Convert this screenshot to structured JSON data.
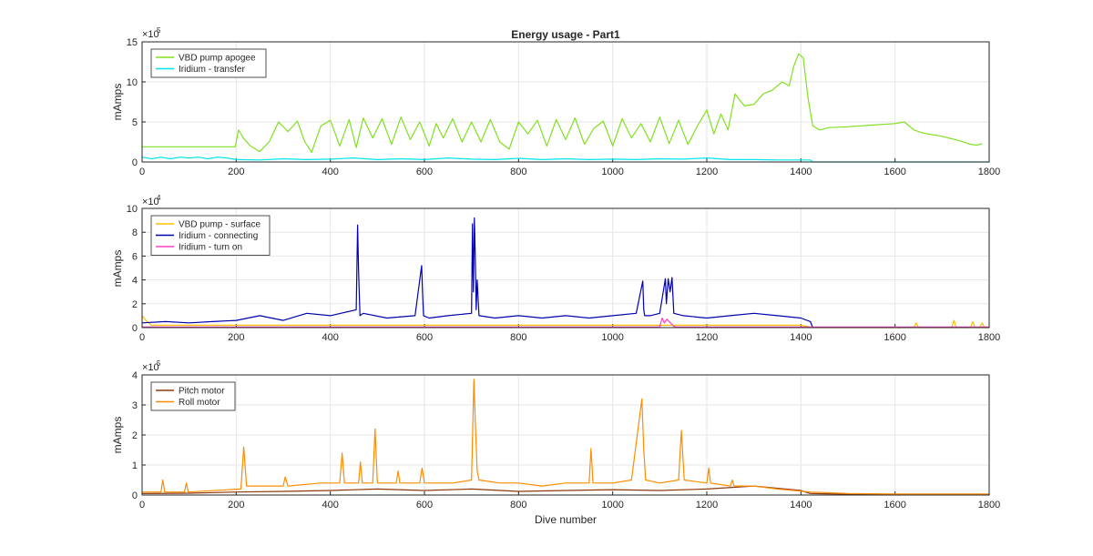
{
  "chart_data": [
    {
      "type": "line",
      "title": "Energy usage - Part1",
      "ylabel": "mAmps",
      "xlabel": "",
      "xlim": [
        0,
        1800
      ],
      "ylim": [
        0,
        15
      ],
      "y_exponent_label": "×10",
      "y_exponent_power": "5",
      "x_ticks": [
        "0",
        "200",
        "400",
        "600",
        "800",
        "1000",
        "1200",
        "1400",
        "1600",
        "1800"
      ],
      "y_ticks": [
        "0",
        "5",
        "10",
        "15"
      ],
      "grid": true,
      "legend_position": "top-left",
      "series": [
        {
          "name": "VBD pump apogee",
          "color": "#80e020",
          "x": [
            0,
            100,
            198,
            205,
            215,
            230,
            250,
            270,
            290,
            310,
            330,
            345,
            360,
            380,
            400,
            420,
            440,
            455,
            470,
            490,
            510,
            530,
            550,
            570,
            590,
            610,
            625,
            640,
            660,
            680,
            700,
            720,
            740,
            760,
            780,
            800,
            820,
            840,
            860,
            880,
            900,
            920,
            940,
            960,
            980,
            1000,
            1020,
            1040,
            1060,
            1080,
            1100,
            1120,
            1140,
            1160,
            1180,
            1200,
            1215,
            1230,
            1245,
            1260,
            1280,
            1300,
            1320,
            1340,
            1360,
            1375,
            1385,
            1395,
            1405,
            1415,
            1425,
            1440,
            1460,
            1500,
            1550,
            1600,
            1620,
            1640,
            1660,
            1700,
            1740,
            1760,
            1775,
            1785
          ],
          "y": [
            1.9,
            1.9,
            1.9,
            4.0,
            3.0,
            2.0,
            1.3,
            2.5,
            5.0,
            3.8,
            5.1,
            2.6,
            1.2,
            4.5,
            5.2,
            2.0,
            5.3,
            1.8,
            5.5,
            3.0,
            5.4,
            2.2,
            5.6,
            2.8,
            5.0,
            2.0,
            4.8,
            3.0,
            5.4,
            2.5,
            5.0,
            2.5,
            5.3,
            2.5,
            1.6,
            5.0,
            3.5,
            5.2,
            2.0,
            5.3,
            2.8,
            5.5,
            2.2,
            4.2,
            5.1,
            2.0,
            5.4,
            3.0,
            4.8,
            2.5,
            5.6,
            2.3,
            5.2,
            2.2,
            4.5,
            6.5,
            3.5,
            6.0,
            4.0,
            8.5,
            7.0,
            7.2,
            8.5,
            9.0,
            10.0,
            9.5,
            12.0,
            13.5,
            13.0,
            8.0,
            4.5,
            4.0,
            4.3,
            4.4,
            4.6,
            4.8,
            5.0,
            4.0,
            3.6,
            3.2,
            2.6,
            2.2,
            2.1,
            2.3
          ]
        },
        {
          "name": "Iridium - transfer",
          "color": "#00e5ee",
          "x": [
            0,
            20,
            40,
            60,
            80,
            100,
            120,
            140,
            160,
            180,
            200,
            250,
            300,
            350,
            400,
            450,
            500,
            550,
            600,
            650,
            700,
            750,
            800,
            850,
            900,
            950,
            1000,
            1050,
            1100,
            1150,
            1200,
            1250,
            1300,
            1350,
            1420,
            1425,
            1800
          ],
          "y": [
            0.6,
            0.4,
            0.6,
            0.4,
            0.6,
            0.5,
            0.6,
            0.4,
            0.6,
            0.5,
            0.3,
            0.25,
            0.4,
            0.3,
            0.35,
            0.5,
            0.3,
            0.4,
            0.3,
            0.5,
            0.35,
            0.3,
            0.45,
            0.3,
            0.4,
            0.3,
            0.35,
            0.3,
            0.4,
            0.35,
            0.5,
            0.3,
            0.3,
            0.25,
            0.25,
            0.0,
            0.0
          ]
        }
      ]
    },
    {
      "type": "line",
      "title": "",
      "ylabel": "mAmps",
      "xlabel": "",
      "xlim": [
        0,
        1800
      ],
      "ylim": [
        0,
        10
      ],
      "y_exponent_label": "×10",
      "y_exponent_power": "4",
      "x_ticks": [
        "0",
        "200",
        "400",
        "600",
        "800",
        "1000",
        "1200",
        "1400",
        "1600",
        "1800"
      ],
      "y_ticks": [
        "0",
        "2",
        "4",
        "6",
        "8",
        "10"
      ],
      "grid": true,
      "legend_position": "top-left",
      "series": [
        {
          "name": "VBD pump - surface",
          "color": "#ffbf00",
          "x": [
            0,
            10,
            20,
            100,
            200,
            400,
            600,
            800,
            1000,
            1200,
            1400,
            1425,
            1640,
            1645,
            1650,
            1720,
            1725,
            1730,
            1760,
            1765,
            1770,
            1780,
            1785,
            1790,
            1800
          ],
          "y": [
            1.0,
            0.5,
            0.2,
            0.2,
            0.2,
            0.2,
            0.2,
            0.2,
            0.2,
            0.2,
            0.2,
            0.0,
            0.0,
            0.4,
            0.0,
            0.0,
            0.6,
            0.0,
            0.0,
            0.5,
            0.0,
            0.0,
            0.4,
            0.0,
            0.0
          ]
        },
        {
          "name": "Iridium - connecting",
          "color": "#0000b0",
          "x": [
            0,
            50,
            100,
            150,
            200,
            250,
            300,
            350,
            400,
            455,
            458,
            460,
            463,
            470,
            520,
            580,
            594,
            596,
            598,
            610,
            650,
            700,
            702,
            704,
            706,
            708,
            710,
            712,
            716,
            750,
            800,
            850,
            900,
            950,
            1000,
            1050,
            1064,
            1066,
            1068,
            1080,
            1100,
            1112,
            1114,
            1118,
            1122,
            1126,
            1130,
            1150,
            1200,
            1250,
            1300,
            1350,
            1400,
            1420,
            1425
          ],
          "y": [
            0.4,
            0.5,
            0.4,
            0.5,
            0.6,
            1.0,
            0.6,
            1.2,
            1.0,
            1.5,
            8.6,
            4.7,
            1.0,
            1.2,
            0.8,
            1.0,
            5.2,
            3.0,
            1.0,
            0.8,
            1.0,
            1.2,
            8.7,
            3.0,
            9.2,
            6.0,
            1.5,
            4.0,
            1.0,
            0.8,
            1.0,
            0.8,
            1.0,
            0.8,
            1.0,
            1.2,
            3.9,
            1.5,
            1.0,
            1.0,
            1.2,
            4.1,
            2.0,
            4.1,
            3.0,
            4.2,
            1.2,
            1.0,
            0.8,
            1.0,
            1.2,
            1.0,
            0.8,
            0.5,
            0.0
          ]
        },
        {
          "name": "Iridium - turn on",
          "color": "#ff40c0",
          "x": [
            0,
            1100,
            1105,
            1110,
            1115,
            1130,
            1135,
            1420,
            1800
          ],
          "y": [
            0.05,
            0.05,
            0.8,
            0.4,
            0.7,
            0.1,
            0.05,
            0.05,
            0.05
          ]
        }
      ]
    },
    {
      "type": "line",
      "title": "",
      "ylabel": "mAmps",
      "xlabel": "Dive number",
      "xlim": [
        0,
        1800
      ],
      "ylim": [
        0,
        4
      ],
      "y_exponent_label": "×10",
      "y_exponent_power": "5",
      "x_ticks": [
        "0",
        "200",
        "400",
        "600",
        "800",
        "1000",
        "1200",
        "1400",
        "1600",
        "1800"
      ],
      "y_ticks": [
        "0",
        "1",
        "2",
        "3",
        "4"
      ],
      "grid": true,
      "legend_position": "top-left",
      "series": [
        {
          "name": "Pitch motor",
          "color": "#8b3a0f",
          "x": [
            0,
            100,
            200,
            300,
            400,
            500,
            600,
            700,
            800,
            900,
            1000,
            1100,
            1200,
            1300,
            1400,
            1420,
            1500,
            1800
          ],
          "y": [
            0.05,
            0.06,
            0.1,
            0.12,
            0.15,
            0.2,
            0.15,
            0.2,
            0.12,
            0.15,
            0.18,
            0.15,
            0.2,
            0.3,
            0.15,
            0.05,
            0.03,
            0.03
          ]
        },
        {
          "name": "Roll motor",
          "color": "#ff8c00",
          "x": [
            0,
            40,
            44,
            48,
            90,
            94,
            98,
            210,
            216,
            222,
            280,
            300,
            304,
            310,
            380,
            420,
            425,
            430,
            460,
            464,
            468,
            490,
            495,
            500,
            540,
            544,
            548,
            590,
            595,
            600,
            660,
            700,
            705,
            708,
            712,
            716,
            760,
            800,
            850,
            900,
            950,
            954,
            958,
            1000,
            1040,
            1062,
            1066,
            1070,
            1100,
            1140,
            1146,
            1152,
            1200,
            1204,
            1208,
            1250,
            1254,
            1258,
            1300,
            1350,
            1420,
            1500,
            1600,
            1700,
            1800
          ],
          "y": [
            0.1,
            0.1,
            0.5,
            0.1,
            0.1,
            0.4,
            0.1,
            0.2,
            1.6,
            0.3,
            0.3,
            0.3,
            0.6,
            0.3,
            0.4,
            0.4,
            1.4,
            0.4,
            0.4,
            1.1,
            0.4,
            0.4,
            2.2,
            0.4,
            0.4,
            0.8,
            0.4,
            0.4,
            0.9,
            0.4,
            0.4,
            0.5,
            3.85,
            2.45,
            0.8,
            0.5,
            0.4,
            0.4,
            0.3,
            0.4,
            0.4,
            1.55,
            0.4,
            0.4,
            0.5,
            3.2,
            1.5,
            0.5,
            0.4,
            0.5,
            2.15,
            0.5,
            0.4,
            0.9,
            0.4,
            0.3,
            0.5,
            0.3,
            0.3,
            0.2,
            0.1,
            0.05,
            0.03,
            0.03,
            0.03
          ]
        }
      ]
    }
  ]
}
